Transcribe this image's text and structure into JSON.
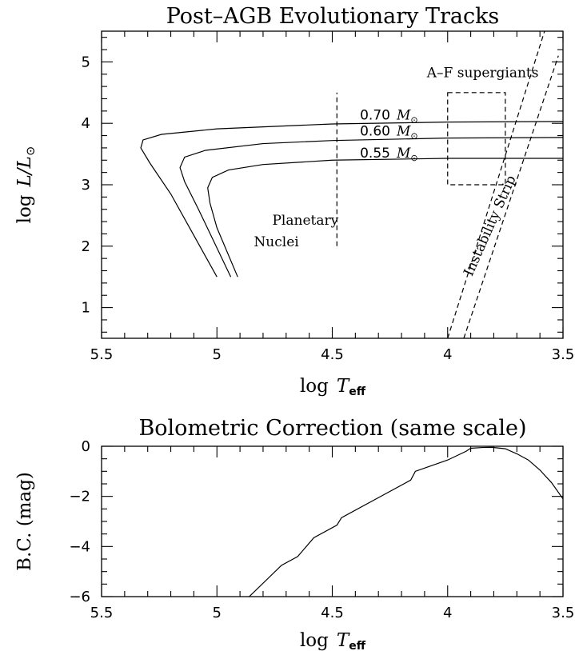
{
  "chart_data": [
    {
      "type": "line",
      "title": "Post–AGB Evolutionary Tracks",
      "xlabel": "log",
      "xlabel_var": "T",
      "xlabel_sub": "eff",
      "ylabel": "log",
      "ylabel_var": "L/L",
      "ylabel_sub": "⊙",
      "xlim": [
        5.5,
        3.5
      ],
      "ylim": [
        0.5,
        5.5
      ],
      "x_ticks": [
        5.5,
        5,
        4.5,
        4,
        3.5
      ],
      "x_tick_labels": [
        "5.5",
        "5",
        "4.5",
        "4",
        "3.5"
      ],
      "y_ticks": [
        1,
        2,
        3,
        4,
        5
      ],
      "y_tick_labels": [
        "1",
        "2",
        "3",
        "4",
        "5"
      ],
      "series": [
        {
          "name": "0.70",
          "unit": "M",
          "unit_sub": "⊙",
          "label_at": [
            4.38,
            4.06
          ],
          "x": [
            5.0,
            5.2,
            5.29,
            5.33,
            5.32,
            5.24,
            5.0,
            4.5,
            4.0,
            3.5
          ],
          "y": [
            1.5,
            2.85,
            3.35,
            3.6,
            3.73,
            3.82,
            3.91,
            3.99,
            4.02,
            4.03
          ]
        },
        {
          "name": "0.60",
          "unit": "M",
          "unit_sub": "⊙",
          "label_at": [
            4.38,
            3.8
          ],
          "x": [
            4.94,
            5.08,
            5.14,
            5.16,
            5.14,
            5.05,
            4.8,
            4.5,
            4.0,
            3.5
          ],
          "y": [
            1.5,
            2.6,
            3.05,
            3.28,
            3.45,
            3.56,
            3.67,
            3.72,
            3.76,
            3.77
          ]
        },
        {
          "name": "0.55",
          "unit": "M",
          "unit_sub": "⊙",
          "label_at": [
            4.38,
            3.44
          ],
          "x": [
            4.91,
            5.0,
            5.03,
            5.04,
            5.02,
            4.95,
            4.8,
            4.5,
            4.0,
            3.5
          ],
          "y": [
            1.5,
            2.3,
            2.7,
            2.95,
            3.12,
            3.24,
            3.33,
            3.4,
            3.43,
            3.43
          ]
        }
      ],
      "annotations": [
        {
          "text": "Planetary",
          "at": [
            4.76,
            2.35
          ]
        },
        {
          "text": "Nuclei",
          "at": [
            4.84,
            2.0
          ]
        },
        {
          "text": "A–F supergiants",
          "at": [
            4.09,
            4.75
          ]
        },
        {
          "text": "Instability Strip",
          "at": [
            3.895,
            1.5
          ],
          "rotate": -66
        }
      ],
      "dashed_lines": [
        {
          "name": "planetary-nuclei-divider",
          "x": [
            4.48,
            4.48
          ],
          "y": [
            2.0,
            4.5
          ]
        },
        {
          "name": "instability-strip-blue-edge",
          "x": [
            4.0,
            3.58
          ],
          "y": [
            0.5,
            5.5
          ]
        },
        {
          "name": "instability-strip-red-edge",
          "x": [
            3.93,
            3.52
          ],
          "y": [
            0.5,
            5.1
          ]
        }
      ],
      "dashed_boxes": [
        {
          "name": "af-supergiants-box",
          "x": [
            4.0,
            3.75
          ],
          "y": [
            3.0,
            4.5
          ]
        }
      ],
      "grid": false,
      "legend": "none"
    },
    {
      "type": "line",
      "title": "Bolometric Correction (same scale)",
      "xlabel": "log",
      "xlabel_var": "T",
      "xlabel_sub": "eff",
      "ylabel": "B.C.  (mag)",
      "xlim": [
        5.5,
        3.5
      ],
      "ylim": [
        -6,
        0
      ],
      "x_ticks": [
        5.5,
        5,
        4.5,
        4,
        3.5
      ],
      "x_tick_labels": [
        "5.5",
        "5",
        "4.5",
        "4",
        "3.5"
      ],
      "y_ticks": [
        0,
        -2,
        -4,
        -6
      ],
      "y_tick_labels": [
        "0",
        "−2",
        "−4",
        "−6"
      ],
      "series": [
        {
          "x": [
            4.86,
            4.72,
            4.65,
            4.58,
            4.48,
            4.46,
            4.3,
            4.16,
            4.14,
            4.0,
            3.92,
            3.9,
            3.85,
            3.81,
            3.75,
            3.7,
            3.65,
            3.6,
            3.55,
            3.5
          ],
          "y": [
            -6.0,
            -4.75,
            -4.4,
            -3.65,
            -3.15,
            -2.85,
            -2.05,
            -1.35,
            -1.0,
            -0.55,
            -0.2,
            -0.08,
            -0.05,
            -0.04,
            -0.1,
            -0.3,
            -0.55,
            -0.95,
            -1.45,
            -2.1
          ]
        }
      ],
      "grid": false,
      "legend": "none"
    }
  ]
}
